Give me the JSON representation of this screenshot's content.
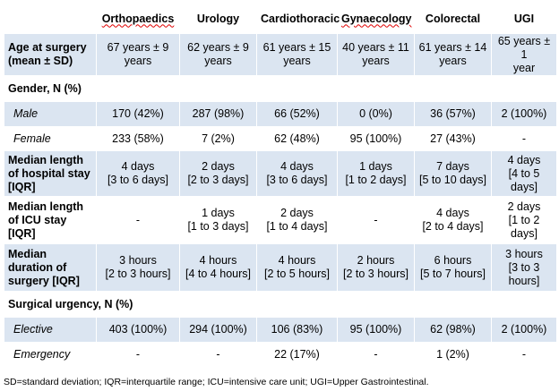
{
  "header": {
    "columns": [
      "",
      "Orthopaedics",
      "Urology",
      "Cardiothoracic",
      "Gynaecology",
      "Colorectal",
      "UGI"
    ]
  },
  "rows": {
    "age": {
      "label": [
        "Age at surgery",
        "(mean ± SD)"
      ],
      "values": [
        [
          "67 years ± 9",
          "years"
        ],
        [
          "62 years ± 9",
          "years"
        ],
        [
          "61 years ± 15",
          "years"
        ],
        [
          "40 years ± 11",
          "years"
        ],
        [
          "61 years ± 14",
          "years"
        ],
        [
          "65 years ± 1",
          "year"
        ]
      ]
    },
    "gender": {
      "label": "Gender, N (%)"
    },
    "male": {
      "label": "Male",
      "values": [
        "170 (42%)",
        "287 (98%)",
        "66 (52%)",
        "0 (0%)",
        "36 (57%)",
        "2 (100%)"
      ]
    },
    "female": {
      "label": "Female",
      "values": [
        "233 (58%)",
        "7 (2%)",
        "62 (48%)",
        "95 (100%)",
        "27 (43%)",
        "-"
      ]
    },
    "hospital_stay": {
      "label": [
        "Median length",
        "of hospital stay",
        "[IQR]"
      ],
      "values": [
        [
          "4 days",
          "[3 to 6 days]"
        ],
        [
          "2 days",
          "[2 to 3 days]"
        ],
        [
          "4 days",
          "[3 to 6 days]"
        ],
        [
          "1 days",
          "[1 to 2 days]"
        ],
        [
          "7 days",
          "[5 to 10 days]"
        ],
        [
          "4 days",
          "[4 to 5 days]"
        ]
      ]
    },
    "icu_stay": {
      "label": [
        "Median length",
        "of ICU stay",
        "[IQR]"
      ],
      "values": [
        [
          "-",
          ""
        ],
        [
          "1 days",
          "[1 to 3 days]"
        ],
        [
          "2 days",
          "[1 to 4 days]"
        ],
        [
          "-",
          ""
        ],
        [
          "4 days",
          "[2 to 4 days]"
        ],
        [
          "2 days",
          "[1 to 2 days]"
        ]
      ]
    },
    "duration": {
      "label": [
        "Median",
        "duration of",
        "surgery [IQR]"
      ],
      "values": [
        [
          "3 hours",
          "[2 to 3 hours]"
        ],
        [
          "4 hours",
          "[4 to 4 hours]"
        ],
        [
          "4 hours",
          "[2 to 5 hours]"
        ],
        [
          "2 hours",
          "[2 to 3 hours]"
        ],
        [
          "6 hours",
          "[5 to 7 hours]"
        ],
        [
          "3 hours",
          "[3 to 3 hours]"
        ]
      ]
    },
    "urgency": {
      "label": "Surgical urgency, N (%)"
    },
    "elective": {
      "label": "Elective",
      "values": [
        "403 (100%)",
        "294 (100%)",
        "106 (83%)",
        "95 (100%)",
        "62 (98%)",
        "2 (100%)"
      ]
    },
    "emergency": {
      "label": "Emergency",
      "values": [
        "-",
        "-",
        "22 (17%)",
        "-",
        "1 (2%)",
        "-"
      ]
    }
  },
  "footnote": "SD=standard deviation; IQR=interquartile range; ICU=intensive care unit; UGI=Upper Gastrointestinal.",
  "colors": {
    "shade": "#dbe5f1",
    "grid": "#ffffff",
    "spellcheck": "#e00000"
  }
}
